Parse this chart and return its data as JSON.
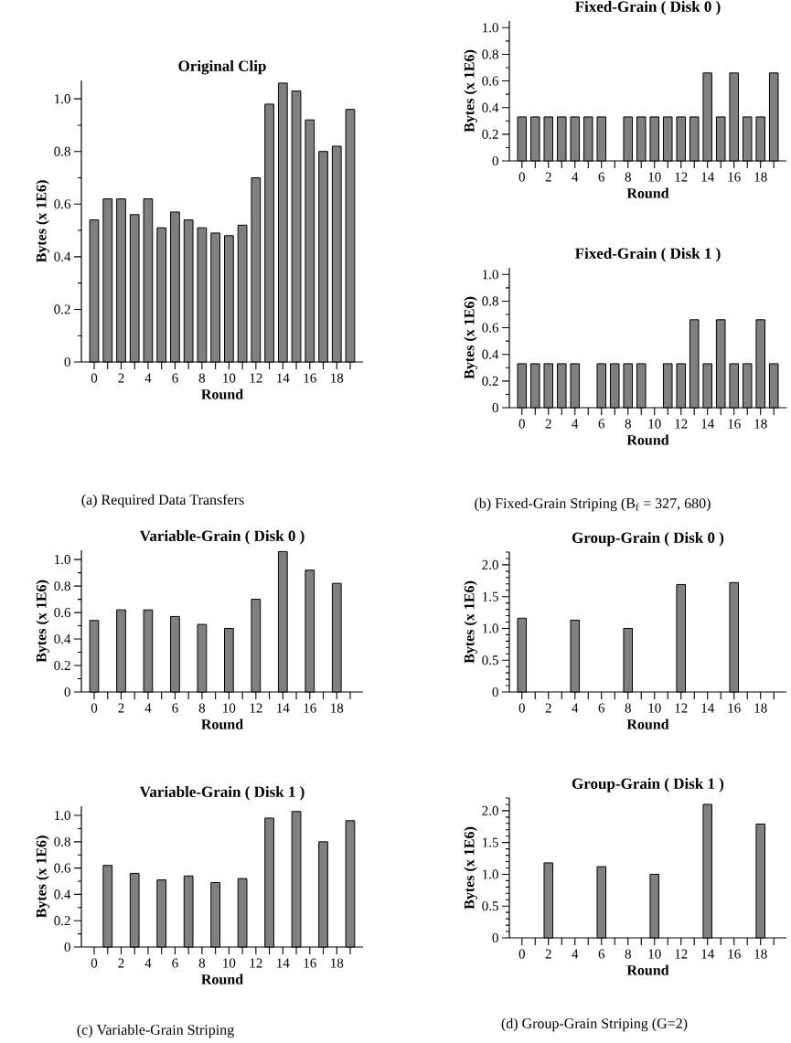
{
  "chart_data": [
    {
      "type": "bar",
      "title": "Original Clip",
      "xlabel": "Round",
      "ylabel": "Bytes (x 1E6)",
      "categories": [
        "0",
        null,
        "2",
        null,
        "4",
        null,
        "6",
        null,
        "8",
        null,
        "10",
        null,
        "12",
        null,
        "14",
        null,
        "16",
        null,
        "18",
        null
      ],
      "values": [
        0.54,
        0.62,
        0.62,
        0.56,
        0.62,
        0.51,
        0.57,
        0.54,
        0.51,
        0.49,
        0.48,
        0.52,
        0.7,
        0.98,
        1.06,
        1.03,
        0.92,
        0.8,
        0.82,
        0.96
      ],
      "color": "#808080",
      "ylim": [
        0,
        1.07
      ],
      "yticks": [
        0,
        {
          "value": 0.1,
          "label": null
        },
        0.2,
        {
          "value": 0.3,
          "label": null
        },
        0.4,
        {
          "value": 0.5,
          "label": null
        },
        0.6,
        {
          "value": 0.7,
          "label": null
        },
        0.8,
        {
          "value": 0.9,
          "label": null
        },
        {
          "value": 1.0,
          "label": "1.0"
        }
      ],
      "annotations": [
        "(a) Required Data Transfers"
      ]
    },
    {
      "type": "bar",
      "title": "Fixed-Grain ( Disk 0 )",
      "xlabel": "Round",
      "ylabel": "Bytes (x 1E6)",
      "categories": [
        "0",
        null,
        "2",
        null,
        "4",
        null,
        "6",
        null,
        "8",
        null,
        "10",
        null,
        "12",
        null,
        "14",
        null,
        "16",
        null,
        "18",
        null
      ],
      "values": [
        0.33,
        0.33,
        0.33,
        0.33,
        0.33,
        0.33,
        0.33,
        null,
        0.33,
        0.33,
        0.33,
        0.33,
        0.33,
        0.33,
        0.66,
        0.33,
        0.66,
        0.33,
        0.33,
        0.66
      ],
      "color": "#808080",
      "ylim": [
        0,
        1.05
      ],
      "yticks": [
        0,
        {
          "value": 0.1,
          "label": null
        },
        0.2,
        {
          "value": 0.3,
          "label": null
        },
        0.4,
        {
          "value": 0.5,
          "label": null
        },
        0.6,
        {
          "value": 0.7,
          "label": null
        },
        0.8,
        {
          "value": 0.9,
          "label": null
        },
        {
          "value": 1.0,
          "label": "1.0"
        }
      ]
    },
    {
      "type": "bar",
      "title": "Fixed-Grain ( Disk 1 )",
      "xlabel": "Round",
      "ylabel": "Bytes (x 1E6)",
      "categories": [
        "0",
        null,
        "2",
        null,
        "4",
        null,
        "6",
        null,
        "8",
        null,
        "10",
        null,
        "12",
        null,
        "14",
        null,
        "16",
        null,
        "18",
        null
      ],
      "values": [
        0.33,
        0.33,
        0.33,
        0.33,
        0.33,
        null,
        0.33,
        0.33,
        0.33,
        0.33,
        null,
        0.33,
        0.33,
        0.66,
        0.33,
        0.66,
        0.33,
        0.33,
        0.66,
        0.33
      ],
      "color": "#808080",
      "ylim": [
        0,
        1.05
      ],
      "yticks": [
        0,
        {
          "value": 0.1,
          "label": null
        },
        0.2,
        {
          "value": 0.3,
          "label": null
        },
        0.4,
        {
          "value": 0.5,
          "label": null
        },
        0.6,
        {
          "value": 0.7,
          "label": null
        },
        0.8,
        {
          "value": 0.9,
          "label": null
        },
        {
          "value": 1.0,
          "label": "1.0"
        }
      ],
      "annotations": [
        "(b) Fixed-Grain Striping (B$_{f}$ = 327, 680)"
      ]
    },
    {
      "type": "bar",
      "title": "Variable-Grain ( Disk 0 )",
      "xlabel": "Round",
      "ylabel": "Bytes (x 1E6)",
      "categories": [
        "0",
        null,
        "2",
        null,
        "4",
        null,
        "6",
        null,
        "8",
        null,
        "10",
        null,
        "12",
        null,
        "14",
        null,
        "16",
        null,
        "18",
        null
      ],
      "values": [
        0.54,
        null,
        0.62,
        null,
        0.62,
        null,
        0.57,
        null,
        0.51,
        null,
        0.48,
        null,
        0.7,
        null,
        1.06,
        null,
        0.92,
        null,
        0.82,
        null
      ],
      "color": "#808080",
      "ylim": [
        0,
        1.07
      ],
      "yticks": [
        0,
        {
          "value": 0.1,
          "label": null
        },
        0.2,
        {
          "value": 0.3,
          "label": null
        },
        0.4,
        {
          "value": 0.5,
          "label": null
        },
        0.6,
        {
          "value": 0.7,
          "label": null
        },
        0.8,
        {
          "value": 0.9,
          "label": null
        },
        {
          "value": 1.0,
          "label": "1.0"
        }
      ]
    },
    {
      "type": "bar",
      "title": "Variable-Grain ( Disk 1 )",
      "xlabel": "Round",
      "ylabel": "Bytes (x 1E6)",
      "categories": [
        "0",
        null,
        "2",
        null,
        "4",
        null,
        "6",
        null,
        "8",
        null,
        "10",
        null,
        "12",
        null,
        "14",
        null,
        "16",
        null,
        "18",
        null
      ],
      "values": [
        null,
        0.62,
        null,
        0.56,
        null,
        0.51,
        null,
        0.54,
        null,
        0.49,
        null,
        0.52,
        null,
        0.98,
        null,
        1.03,
        null,
        0.8,
        null,
        0.96
      ],
      "color": "#808080",
      "ylim": [
        0,
        1.07
      ],
      "yticks": [
        0,
        {
          "value": 0.1,
          "label": null
        },
        0.2,
        {
          "value": 0.3,
          "label": null
        },
        0.4,
        {
          "value": 0.5,
          "label": null
        },
        0.6,
        {
          "value": 0.7,
          "label": null
        },
        0.8,
        {
          "value": 0.9,
          "label": null
        },
        {
          "value": 1.0,
          "label": "1.0"
        }
      ],
      "annotations": [
        "(c) Variable-Grain Striping"
      ]
    },
    {
      "type": "bar",
      "title": "Group-Grain ( Disk 0 )",
      "xlabel": "Round",
      "ylabel": "Bytes (x 1E6)",
      "categories": [
        "0",
        null,
        "2",
        null,
        "4",
        null,
        "6",
        null,
        "8",
        null,
        "10",
        null,
        "12",
        null,
        "14",
        null,
        "16",
        null,
        "18",
        null
      ],
      "values": [
        1.16,
        null,
        null,
        null,
        1.13,
        null,
        null,
        null,
        1.0,
        null,
        null,
        null,
        1.69,
        null,
        null,
        null,
        1.72,
        null,
        null,
        null
      ],
      "color": "#808080",
      "ylim": [
        0,
        2.2
      ],
      "yticks": [
        0,
        {
          "value": 0.1,
          "label": null
        },
        {
          "value": 0.2,
          "label": null
        },
        {
          "value": 0.3,
          "label": null
        },
        {
          "value": 0.4,
          "label": null
        },
        0.5,
        {
          "value": 0.6,
          "label": null
        },
        {
          "value": 0.7,
          "label": null
        },
        {
          "value": 0.8,
          "label": null
        },
        {
          "value": 0.9,
          "label": null
        },
        {
          "value": 1.0,
          "label": "1.0"
        },
        {
          "value": 1.1,
          "label": null
        },
        {
          "value": 1.2,
          "label": null
        },
        {
          "value": 1.3,
          "label": null
        },
        {
          "value": 1.4,
          "label": null
        },
        1.5,
        {
          "value": 1.6,
          "label": null
        },
        {
          "value": 1.7,
          "label": null
        },
        {
          "value": 1.8,
          "label": null
        },
        {
          "value": 1.9,
          "label": null
        },
        {
          "value": 2.0,
          "label": "2.0"
        },
        {
          "value": 2.1,
          "label": null
        },
        {
          "value": 2.2,
          "label": null
        }
      ]
    },
    {
      "type": "bar",
      "title": "Group-Grain ( Disk 1 )",
      "xlabel": "Round",
      "ylabel": "Bytes (x 1E6)",
      "categories": [
        "0",
        null,
        "2",
        null,
        "4",
        null,
        "6",
        null,
        "8",
        null,
        "10",
        null,
        "12",
        null,
        "14",
        null,
        "16",
        null,
        "18",
        null
      ],
      "values": [
        null,
        null,
        1.18,
        null,
        null,
        null,
        1.12,
        null,
        null,
        null,
        1.0,
        null,
        null,
        null,
        2.1,
        null,
        null,
        null,
        1.79,
        null
      ],
      "color": "#808080",
      "ylim": [
        0,
        2.2
      ],
      "yticks": [
        0,
        {
          "value": 0.1,
          "label": null
        },
        {
          "value": 0.2,
          "label": null
        },
        {
          "value": 0.3,
          "label": null
        },
        {
          "value": 0.4,
          "label": null
        },
        0.5,
        {
          "value": 0.6,
          "label": null
        },
        {
          "value": 0.7,
          "label": null
        },
        {
          "value": 0.8,
          "label": null
        },
        {
          "value": 0.9,
          "label": null
        },
        {
          "value": 1.0,
          "label": "1.0"
        },
        {
          "value": 1.1,
          "label": null
        },
        {
          "value": 1.2,
          "label": null
        },
        {
          "value": 1.3,
          "label": null
        },
        {
          "value": 1.4,
          "label": null
        },
        1.5,
        {
          "value": 1.6,
          "label": null
        },
        {
          "value": 1.7,
          "label": null
        },
        {
          "value": 1.8,
          "label": null
        },
        {
          "value": 1.9,
          "label": null
        },
        {
          "value": 2.0,
          "label": "2.0"
        },
        {
          "value": 2.1,
          "label": null
        },
        {
          "value": 2.2,
          "label": null
        }
      ],
      "annotations": [
        "(d) Group-Grain Striping (G=2)"
      ]
    }
  ]
}
